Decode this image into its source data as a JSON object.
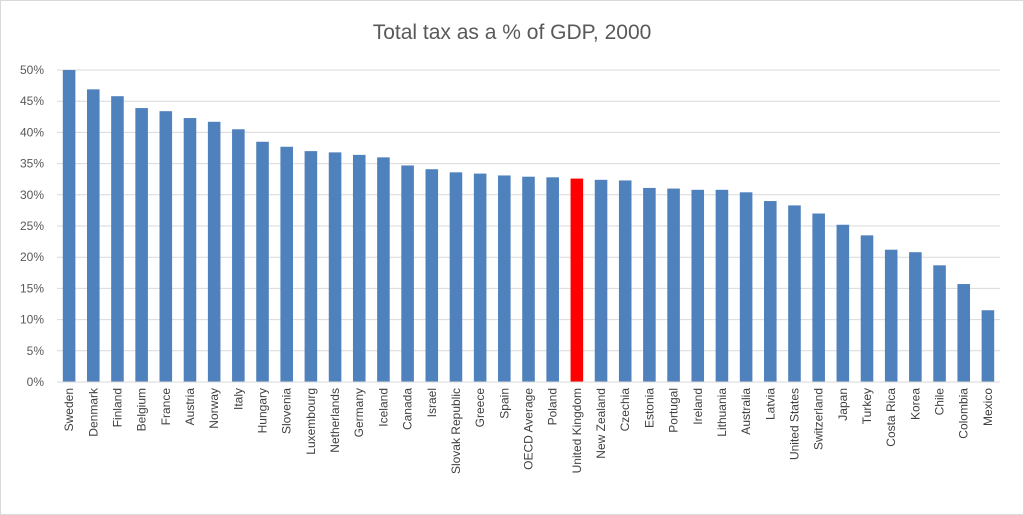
{
  "chart_data": {
    "type": "bar",
    "title": "Total tax as a % of GDP, 2000",
    "xlabel": "",
    "ylabel": "",
    "ylim": [
      0,
      50
    ],
    "y_ticks": [
      "0%",
      "5%",
      "10%",
      "15%",
      "20%",
      "25%",
      "30%",
      "35%",
      "40%",
      "45%",
      "50%"
    ],
    "grid": true,
    "legend": "none",
    "colors": {
      "default": "#4f81bd",
      "highlight": "#ff0000"
    },
    "highlight_category": "United Kingdom",
    "categories": [
      "Sweden",
      "Denmark",
      "Finland",
      "Belgium",
      "France",
      "Austria",
      "Norway",
      "Italy",
      "Hungary",
      "Slovenia",
      "Luxembourg",
      "Netherlands",
      "Germany",
      "Iceland",
      "Canada",
      "Israel",
      "Slovak Republic",
      "Greece",
      "Spain",
      "OECD Average",
      "Poland",
      "United Kingdom",
      "New Zealand",
      "Czechia",
      "Estonia",
      "Portugal",
      "Ireland",
      "Lithuania",
      "Australia",
      "Latvia",
      "United States",
      "Switzerland",
      "Japan",
      "Turkey",
      "Costa Rica",
      "Korea",
      "Chile",
      "Colombia",
      "Mexico"
    ],
    "values": [
      50.0,
      46.9,
      45.8,
      43.9,
      43.4,
      42.3,
      41.7,
      40.5,
      38.5,
      37.7,
      37.0,
      36.8,
      36.4,
      36.0,
      34.7,
      34.1,
      33.6,
      33.4,
      33.1,
      32.9,
      32.8,
      32.6,
      32.4,
      32.3,
      31.1,
      31.0,
      30.8,
      30.8,
      30.4,
      29.0,
      28.3,
      27.0,
      25.2,
      23.5,
      21.2,
      20.8,
      18.7,
      15.7,
      11.5
    ]
  }
}
